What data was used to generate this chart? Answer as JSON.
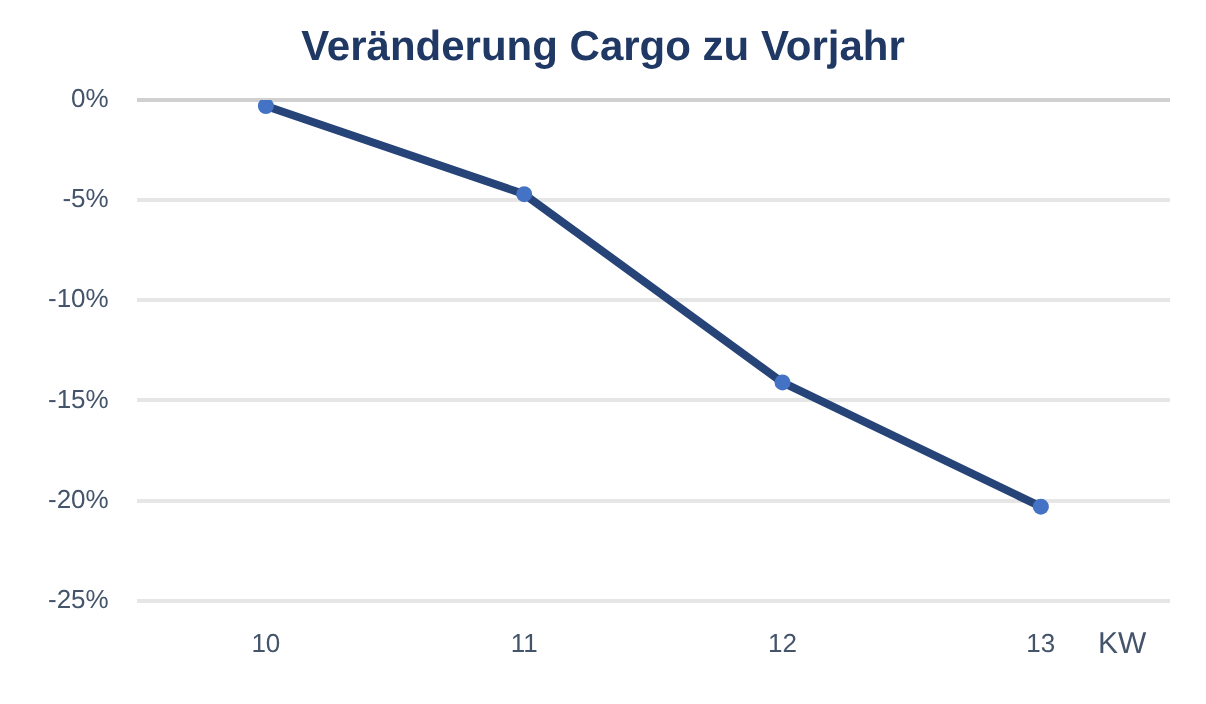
{
  "chart_data": {
    "type": "line",
    "title": "Veränderung Cargo zu Vorjahr",
    "xlabel": "KW",
    "categories": [
      "10",
      "11",
      "12",
      "13"
    ],
    "series": [
      {
        "color": "#264478",
        "values": [
          -0.3,
          -4.7,
          -14.1,
          -20.3
        ]
      }
    ],
    "ylim": [
      -25,
      0
    ],
    "yticks": [
      {
        "value": 0,
        "label": "0%"
      },
      {
        "value": -5,
        "label": "-5%"
      },
      {
        "value": -10,
        "label": "-10%"
      },
      {
        "value": -15,
        "label": "-15%"
      },
      {
        "value": -20,
        "label": "-20%"
      },
      {
        "value": -25,
        "label": "-25%"
      }
    ],
    "grid": "y",
    "legend": false,
    "marker": "circle",
    "line_style": "solid"
  }
}
